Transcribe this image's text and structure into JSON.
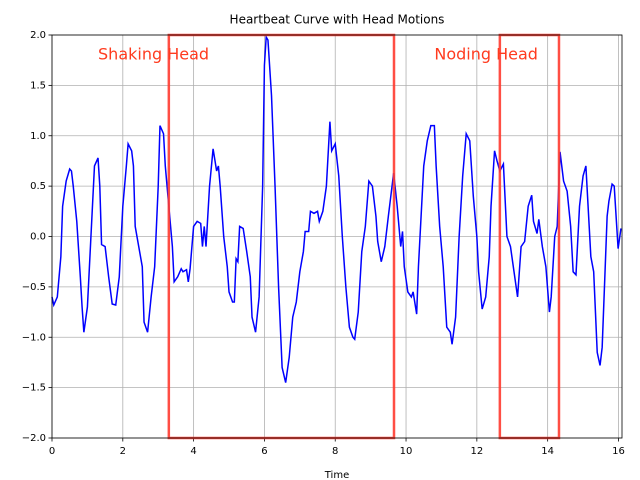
{
  "chart_data": {
    "type": "line",
    "title": "Heartbeat Curve with Head Motions",
    "x_label": "Time",
    "x": [
      0,
      0.05,
      0.15,
      0.25,
      0.3,
      0.4,
      0.5,
      0.55,
      0.6,
      0.7,
      0.8,
      0.85,
      0.9,
      1.0,
      1.1,
      1.2,
      1.3,
      1.35,
      1.4,
      1.5,
      1.6,
      1.7,
      1.8,
      1.9,
      2.0,
      2.1,
      2.15,
      2.25,
      2.3,
      2.35,
      2.45,
      2.55,
      2.6,
      2.7,
      2.8,
      2.9,
      3.0,
      3.05,
      3.15,
      3.2,
      3.3,
      3.4,
      3.45,
      3.55,
      3.65,
      3.7,
      3.8,
      3.85,
      3.9,
      4.0,
      4.1,
      4.2,
      4.25,
      4.3,
      4.35,
      4.45,
      4.55,
      4.65,
      4.7,
      4.75,
      4.85,
      4.95,
      5.0,
      5.1,
      5.15,
      5.2,
      5.25,
      5.3,
      5.4,
      5.5,
      5.6,
      5.65,
      5.75,
      5.85,
      5.95,
      6.0,
      6.05,
      6.1,
      6.2,
      6.3,
      6.4,
      6.5,
      6.6,
      6.7,
      6.8,
      6.9,
      7.0,
      7.1,
      7.15,
      7.25,
      7.3,
      7.4,
      7.5,
      7.55,
      7.65,
      7.75,
      7.85,
      7.9,
      8.0,
      8.1,
      8.2,
      8.3,
      8.4,
      8.5,
      8.55,
      8.65,
      8.75,
      8.85,
      8.95,
      9.05,
      9.15,
      9.2,
      9.3,
      9.4,
      9.5,
      9.65,
      9.75,
      9.85,
      9.9,
      9.95,
      10.05,
      10.15,
      10.2,
      10.3,
      10.35,
      10.5,
      10.6,
      10.7,
      10.8,
      10.85,
      10.95,
      11.05,
      11.15,
      11.25,
      11.3,
      11.4,
      11.5,
      11.6,
      11.7,
      11.8,
      11.9,
      12.0,
      12.05,
      12.15,
      12.25,
      12.35,
      12.4,
      12.5,
      12.57,
      12.65,
      12.75,
      12.85,
      12.95,
      13.05,
      13.15,
      13.25,
      13.35,
      13.45,
      13.55,
      13.6,
      13.7,
      13.75,
      13.85,
      13.95,
      14.05,
      14.1,
      14.2,
      14.27,
      14.35,
      14.45,
      14.55,
      14.65,
      14.72,
      14.8,
      14.9,
      15.0,
      15.08,
      15.22,
      15.3,
      15.4,
      15.48,
      15.54,
      15.68,
      15.73,
      15.82,
      15.88,
      15.99,
      16.07
    ],
    "values": [
      -0.6,
      -0.68,
      -0.6,
      -0.2,
      0.3,
      0.55,
      0.67,
      0.65,
      0.5,
      0.15,
      -0.4,
      -0.7,
      -0.95,
      -0.7,
      0,
      0.7,
      0.78,
      0.5,
      -0.08,
      -0.1,
      -0.4,
      -0.67,
      -0.68,
      -0.4,
      0.3,
      0.7,
      0.92,
      0.85,
      0.7,
      0.1,
      -0.1,
      -0.3,
      -0.85,
      -0.95,
      -0.6,
      -0.3,
      0.5,
      1.1,
      1.02,
      0.7,
      0.3,
      -0.1,
      -0.45,
      -0.4,
      -0.32,
      -0.35,
      -0.33,
      -0.45,
      -0.32,
      0.1,
      0.15,
      0.13,
      -0.1,
      0.1,
      -0.1,
      0.5,
      0.87,
      0.65,
      0.7,
      0.5,
      0,
      -0.3,
      -0.55,
      -0.65,
      -0.65,
      -0.22,
      -0.25,
      0.1,
      0.08,
      -0.15,
      -0.4,
      -0.8,
      -0.95,
      -0.6,
      0.5,
      1.7,
      1.98,
      1.95,
      1.4,
      0.5,
      -0.5,
      -1.3,
      -1.45,
      -1.2,
      -0.8,
      -0.65,
      -0.35,
      -0.15,
      0.05,
      0.05,
      0.25,
      0.23,
      0.25,
      0.15,
      0.25,
      0.5,
      1.14,
      0.85,
      0.92,
      0.6,
      0,
      -0.5,
      -0.9,
      -1.0,
      -1.02,
      -0.75,
      -0.15,
      0.1,
      0.55,
      0.5,
      0.2,
      -0.05,
      -0.25,
      -0.1,
      0.2,
      0.63,
      0.3,
      -0.1,
      0.05,
      -0.3,
      -0.55,
      -0.6,
      -0.55,
      -0.77,
      -0.3,
      0.7,
      0.95,
      1.1,
      1.1,
      0.7,
      0.1,
      -0.3,
      -0.9,
      -0.95,
      -1.07,
      -0.8,
      0,
      0.6,
      1.02,
      0.95,
      0.4,
      0,
      -0.35,
      -0.72,
      -0.6,
      -0.2,
      0.3,
      0.85,
      0.75,
      0.65,
      0.72,
      0,
      -0.1,
      -0.35,
      -0.6,
      -0.1,
      -0.05,
      0.3,
      0.41,
      0.15,
      0.03,
      0.17,
      -0.1,
      -0.3,
      -0.75,
      -0.6,
      0,
      0.1,
      0.84,
      0.55,
      0.45,
      0.1,
      -0.35,
      -0.38,
      0.3,
      0.6,
      0.7,
      -0.2,
      -0.35,
      -1.15,
      -1.28,
      -1.1,
      0.2,
      0.35,
      0.52,
      0.5,
      -0.12,
      0.08
    ],
    "color": "#0000ff",
    "xlim": [
      0,
      16.1
    ],
    "ylim": [
      -2,
      2
    ],
    "xticks": [
      0,
      2,
      4,
      6,
      8,
      10,
      12,
      14,
      16
    ],
    "yticks": [
      {
        "value": -2,
        "label": "−2.0"
      },
      {
        "value": -1.5,
        "label": "−1.5"
      },
      {
        "value": -1,
        "label": "−1.0"
      },
      {
        "value": -0.5,
        "label": "−0.5"
      },
      {
        "value": 0,
        "label": "0.0"
      },
      {
        "value": 0.5,
        "label": "0.5"
      },
      {
        "value": 1,
        "label": "1.0"
      },
      {
        "value": 1.5,
        "label": "1.5"
      },
      {
        "value": 2,
        "label": "2.0"
      }
    ],
    "grid": true,
    "highlights": [
      {
        "x0": 3.3,
        "x1": 9.66,
        "y0": -2,
        "y1": 2,
        "color": "#ff3b30"
      },
      {
        "x0": 12.65,
        "x1": 14.32,
        "y0": -2,
        "y1": 2,
        "color": "#ff3b30"
      }
    ],
    "annotations": [
      {
        "text": "Shaking Head",
        "x": 1.3,
        "y": 1.8,
        "color": "#ff3b1f"
      },
      {
        "text": "Noding Head",
        "x": 10.8,
        "y": 1.8,
        "color": "#ff3b1f"
      }
    ]
  }
}
